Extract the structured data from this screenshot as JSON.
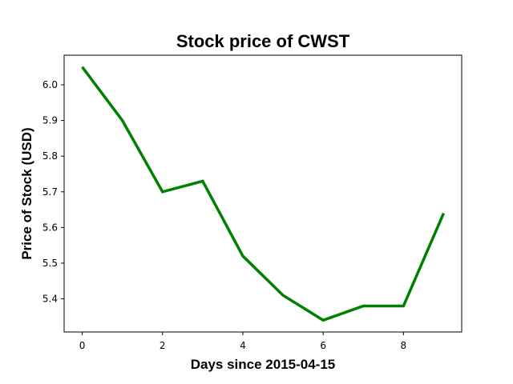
{
  "chart_data": {
    "type": "line",
    "title": "Stock price of CWST",
    "xlabel": "Days since 2015-04-15",
    "ylabel": "Price of Stock (USD)",
    "x": [
      0,
      1,
      2,
      3,
      4,
      5,
      6,
      7,
      8,
      9
    ],
    "series": [
      {
        "values": [
          6.05,
          5.9,
          5.7,
          5.73,
          5.52,
          5.41,
          5.34,
          5.38,
          5.38,
          5.64
        ],
        "color": "#008000"
      }
    ],
    "xlim": [
      -0.45,
      9.45
    ],
    "ylim": [
      5.307,
      6.083
    ],
    "xticks": [
      0,
      2,
      4,
      6,
      8
    ],
    "yticks": [
      5.4,
      5.5,
      5.6,
      5.7,
      5.8,
      5.9,
      6.0
    ],
    "xtick_labels": [
      "0",
      "2",
      "4",
      "6",
      "8"
    ],
    "ytick_labels": [
      "5.4",
      "5.5",
      "5.6",
      "5.7",
      "5.8",
      "5.9",
      "6.0"
    ],
    "grid": false,
    "legend": false
  }
}
